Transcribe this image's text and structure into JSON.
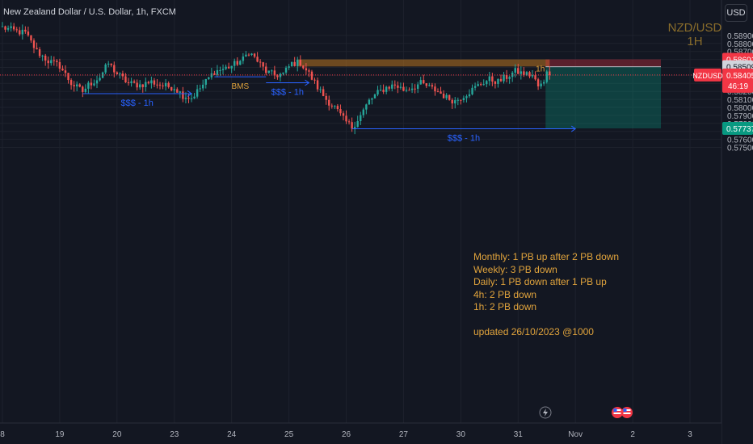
{
  "header": {
    "title": "New Zealand Dollar / U.S. Dollar, 1h, FXCM",
    "currency_button": "USD"
  },
  "watermark": {
    "pair": "NZD/USD",
    "timeframe": "1H"
  },
  "notes": {
    "monthly": "Monthly: 1 PB up after 2 PB down",
    "weekly": "Weekly: 3 PB down",
    "daily": "Daily: 1 PB down after 1 PB up",
    "h4": "4h: 2 PB down",
    "h1": "1h: 2 PB down",
    "updated": "updated 26/10/2023 @1000"
  },
  "colors": {
    "background": "#131722",
    "up_candle": "#26a69a",
    "down_candle": "#ef5350",
    "annotation_blue": "#2962ff",
    "annotation_orange": "#e0a33c",
    "zone_orange": "#b8731f",
    "stop_zone": "#f23645",
    "target_zone": "#089981",
    "current_price": "#f23645"
  },
  "chart_data": {
    "type": "candlestick",
    "symbol": "NZDUSD",
    "timeframe": "1h",
    "ylim": [
      0.5745,
      0.5901
    ],
    "y_ticks": [
      0.589,
      0.588,
      0.587,
      0.586,
      0.585,
      0.584,
      0.583,
      0.582,
      0.581,
      0.58,
      0.579,
      0.578,
      0.577,
      0.576,
      0.575
    ],
    "y_tick_labels": [
      "0.58900",
      "0.58800",
      "0.58700",
      "0.58600",
      "0.58500",
      "0.58400",
      "0.58300",
      "0.58200",
      "0.58100",
      "0.58000",
      "0.57900",
      "0.57800",
      "0.57700",
      "0.57600",
      "0.57500"
    ],
    "x_ticks": [
      {
        "label": "8",
        "index": 0
      },
      {
        "label": "19",
        "index": 20
      },
      {
        "label": "20",
        "index": 40
      },
      {
        "label": "23",
        "index": 60
      },
      {
        "label": "24",
        "index": 80
      },
      {
        "label": "25",
        "index": 100
      },
      {
        "label": "26",
        "index": 120
      },
      {
        "label": "27",
        "index": 140
      },
      {
        "label": "30",
        "index": 160
      },
      {
        "label": "31",
        "index": 180
      },
      {
        "label": "Nov",
        "index": 200
      },
      {
        "label": "2",
        "index": 220
      },
      {
        "label": "3",
        "index": 240
      }
    ],
    "waypoints": [
      [
        0,
        0.59
      ],
      [
        5,
        0.5895
      ],
      [
        8,
        0.5893
      ],
      [
        12,
        0.587
      ],
      [
        16,
        0.5858
      ],
      [
        20,
        0.5852
      ],
      [
        24,
        0.583
      ],
      [
        28,
        0.582
      ],
      [
        30,
        0.5828
      ],
      [
        34,
        0.5838
      ],
      [
        37,
        0.5855
      ],
      [
        40,
        0.5842
      ],
      [
        44,
        0.583
      ],
      [
        48,
        0.5828
      ],
      [
        52,
        0.5832
      ],
      [
        56,
        0.5827
      ],
      [
        60,
        0.5825
      ],
      [
        63,
        0.5815
      ],
      [
        66,
        0.5812
      ],
      [
        70,
        0.5828
      ],
      [
        74,
        0.5845
      ],
      [
        77,
        0.5848
      ],
      [
        80,
        0.5852
      ],
      [
        84,
        0.586
      ],
      [
        86,
        0.587
      ],
      [
        89,
        0.5858
      ],
      [
        92,
        0.5845
      ],
      [
        95,
        0.584
      ],
      [
        98,
        0.5842
      ],
      [
        101,
        0.5855
      ],
      [
        104,
        0.5856
      ],
      [
        107,
        0.5842
      ],
      [
        110,
        0.5825
      ],
      [
        113,
        0.581
      ],
      [
        116,
        0.58
      ],
      [
        119,
        0.5785
      ],
      [
        122,
        0.5775
      ],
      [
        125,
        0.579
      ],
      [
        128,
        0.5808
      ],
      [
        131,
        0.5818
      ],
      [
        134,
        0.5825
      ],
      [
        137,
        0.5828
      ],
      [
        140,
        0.5822
      ],
      [
        143,
        0.5825
      ],
      [
        146,
        0.583
      ],
      [
        149,
        0.5825
      ],
      [
        152,
        0.582
      ],
      [
        155,
        0.5812
      ],
      [
        158,
        0.5808
      ],
      [
        161,
        0.5815
      ],
      [
        164,
        0.5822
      ],
      [
        167,
        0.583
      ],
      [
        170,
        0.5835
      ],
      [
        173,
        0.5832
      ],
      [
        176,
        0.5838
      ],
      [
        179,
        0.5845
      ],
      [
        182,
        0.5842
      ],
      [
        185,
        0.584
      ],
      [
        187,
        0.5826
      ],
      [
        189,
        0.583
      ],
      [
        190,
        0.5847
      ],
      [
        191,
        0.5843
      ]
    ],
    "current_price": 0.58405,
    "countdown": "46:19",
    "price_labels": {
      "stop": "0.58601",
      "entry": "0.58509",
      "current": "0.58405",
      "target": "0.57737"
    },
    "position": {
      "type": "short",
      "stop": 0.58601,
      "entry": 0.58509,
      "target": 0.57737
    },
    "zone": {
      "label": "1h",
      "top": 0.586,
      "bottom": 0.58512,
      "start_index": 103,
      "end_index": 191
    },
    "annotations": [
      {
        "label": "$$$ - 1h",
        "price": 0.58172,
        "start_index": 28,
        "end_index": 66
      },
      {
        "label": "BMS",
        "price": 0.58383,
        "start_index": 74,
        "end_index": 92
      },
      {
        "label": "$$$ - 1h",
        "price": 0.58308,
        "start_index": 92,
        "end_index": 107
      },
      {
        "label": "$$$ - 1h",
        "price": 0.57732,
        "start_index": 122,
        "end_index": 200
      }
    ],
    "symbol_label": "NZDUSD"
  }
}
